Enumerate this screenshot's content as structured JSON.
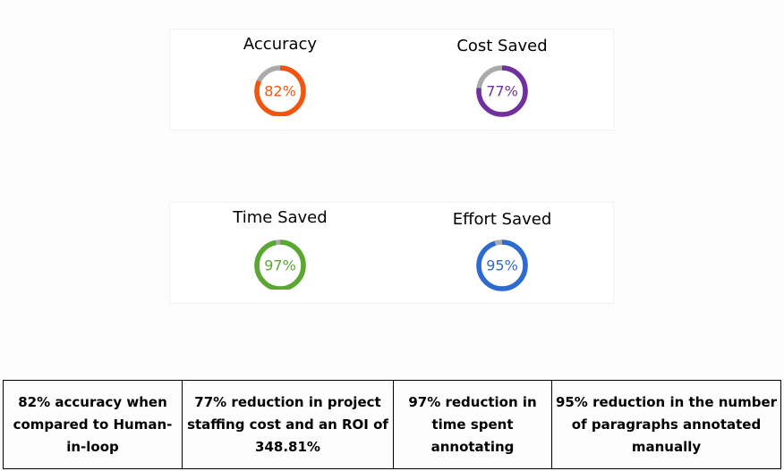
{
  "chart_data": [
    {
      "type": "pie",
      "title": "Accuracy",
      "value": 82,
      "label": "82%",
      "color": "#f0560e",
      "remainder_color": "#aaaaaa"
    },
    {
      "type": "pie",
      "title": "Cost Saved",
      "value": 77,
      "label": "77%",
      "color": "#7030a0",
      "remainder_color": "#aaaaaa"
    },
    {
      "type": "pie",
      "title": "Time Saved",
      "value": 97,
      "label": "97%",
      "color": "#5aa832",
      "remainder_color": "#aaaaaa"
    },
    {
      "type": "pie",
      "title": "Effort Saved",
      "value": 95,
      "label": "95%",
      "color": "#2e6bd1",
      "remainder_color": "#aaaaaa"
    }
  ],
  "summary_table": [
    "82% accuracy when compared to Human-in-loop",
    "77% reduction in project staffing cost and an ROI of 348.81%",
    "97% reduction in time spent annotating",
    "95% reduction in the number of paragraphs annotated manually"
  ]
}
